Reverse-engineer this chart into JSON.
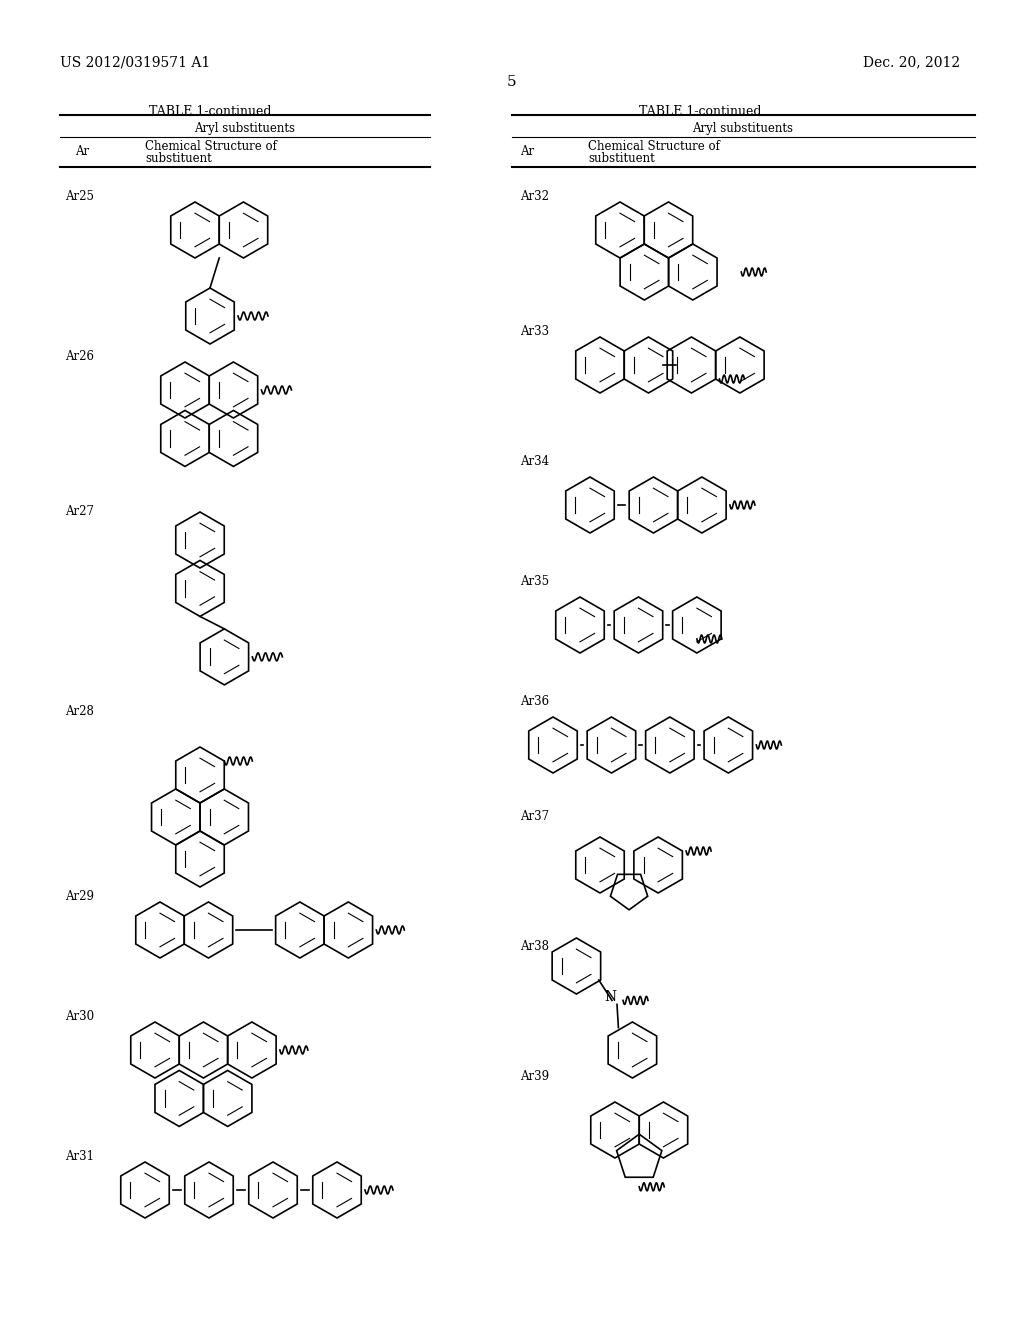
{
  "title_left": "US 2012/0319571 A1",
  "title_right": "Dec. 20, 2012",
  "page_num": "5",
  "table_title": "TABLE 1-continued",
  "col1_header1": "Aryl substituents",
  "col1_subheader": "Chemical Structure of",
  "col1_subheader2": "substituent",
  "col1_ar": "Ar",
  "background": "#ffffff",
  "text_color": "#000000",
  "entries_left": [
    "Ar25",
    "Ar26",
    "Ar27",
    "Ar28",
    "Ar29",
    "Ar30",
    "Ar31"
  ],
  "entries_right": [
    "Ar32",
    "Ar33",
    "Ar34",
    "Ar35",
    "Ar36",
    "Ar37",
    "Ar38",
    "Ar39"
  ]
}
